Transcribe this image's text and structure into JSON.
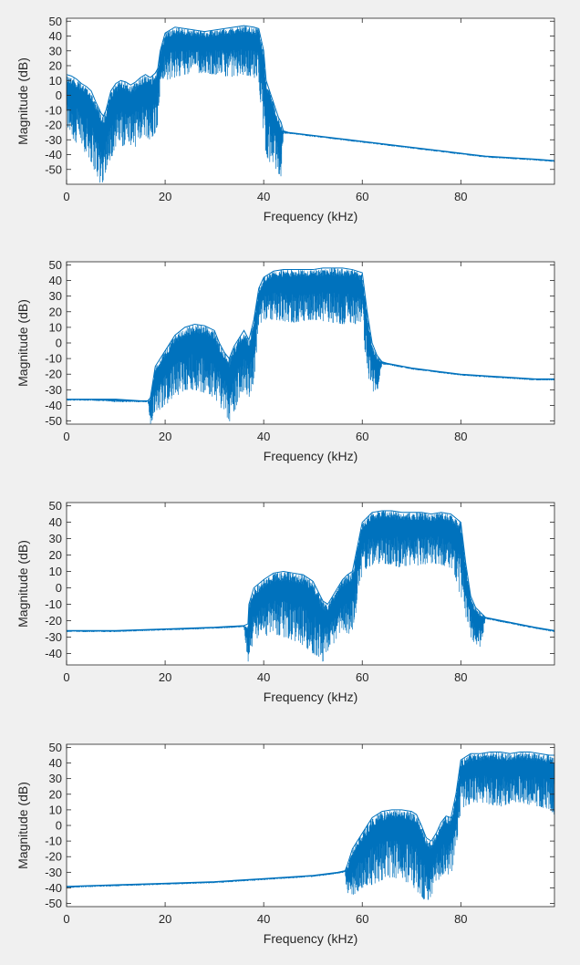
{
  "figure": {
    "background": "#f0f0f0",
    "axes_background": "#ffffff",
    "line_color": "#0072bd"
  },
  "chart_data": [
    {
      "type": "line",
      "title": "",
      "xlabel": "Frequency (kHz)",
      "ylabel": "Magnitude (dB)",
      "xlim": [
        0,
        99
      ],
      "ylim": [
        -60,
        52
      ],
      "xticks": [
        0,
        20,
        40,
        60,
        80
      ],
      "yticks": [
        -50,
        -40,
        -30,
        -20,
        -10,
        0,
        10,
        20,
        30,
        40,
        50
      ],
      "grid": false,
      "series": [
        {
          "x": [
            0,
            1,
            2,
            3,
            4,
            5,
            6,
            7,
            7.5,
            8,
            9,
            10,
            11,
            12,
            13,
            14,
            15,
            16,
            17,
            18,
            18.5,
            19,
            20,
            22,
            24,
            26,
            28,
            30,
            32,
            34,
            36,
            38,
            39,
            40,
            40.5,
            41,
            42,
            43,
            43.5,
            44,
            45,
            50,
            55,
            60,
            65,
            70,
            75,
            80,
            85,
            90,
            95,
            99
          ],
          "y_top": [
            14,
            13,
            11,
            8,
            6,
            3,
            -5,
            -12,
            -14,
            -10,
            3,
            8,
            10,
            9,
            7,
            9,
            12,
            14,
            12,
            15,
            18,
            30,
            42,
            46,
            45,
            44,
            43,
            44,
            45,
            46,
            47,
            46,
            45,
            30,
            10,
            5,
            -5,
            -15,
            -18,
            -24,
            -25,
            -27,
            -29,
            -31,
            -33,
            -35,
            -37,
            -39,
            -41,
            -42,
            -43,
            -44
          ],
          "y_bottom": [
            -25,
            -28,
            -32,
            -35,
            -40,
            -45,
            -55,
            -60,
            -60,
            -50,
            -42,
            -38,
            -35,
            -33,
            -34,
            -35,
            -30,
            -28,
            -30,
            -25,
            -20,
            5,
            10,
            12,
            14,
            15,
            15,
            14,
            13,
            12,
            14,
            12,
            10,
            -30,
            -40,
            -45,
            -45,
            -55,
            -60,
            -26,
            -26,
            -28,
            -30,
            -32,
            -34,
            -36,
            -38,
            -40,
            -42,
            -43,
            -44,
            -45
          ]
        }
      ]
    },
    {
      "type": "line",
      "title": "",
      "xlabel": "Frequency (kHz)",
      "ylabel": "Magnitude (dB)",
      "xlim": [
        0,
        99
      ],
      "ylim": [
        -52,
        52
      ],
      "xticks": [
        0,
        20,
        40,
        60,
        80
      ],
      "yticks": [
        -50,
        -40,
        -30,
        -20,
        -10,
        0,
        10,
        20,
        30,
        40,
        50
      ],
      "grid": false,
      "series": [
        {
          "x": [
            0,
            5,
            10,
            15,
            16.5,
            17,
            18,
            20,
            22,
            24,
            26,
            28,
            30,
            31,
            32,
            33,
            34,
            35,
            36,
            37,
            38,
            39,
            40,
            42,
            44,
            46,
            48,
            50,
            52,
            54,
            56,
            58,
            60,
            61,
            62,
            63,
            64,
            65,
            70,
            75,
            80,
            85,
            90,
            95,
            99
          ],
          "y_top": [
            -36,
            -36,
            -36,
            -37,
            -37,
            -35,
            -15,
            -5,
            5,
            10,
            12,
            11,
            8,
            0,
            -6,
            -10,
            -2,
            3,
            8,
            2,
            15,
            35,
            42,
            46,
            47,
            47,
            47,
            47,
            48,
            48,
            48,
            47,
            45,
            20,
            0,
            -8,
            -12,
            -13,
            -16,
            -18,
            -20,
            -21,
            -22,
            -23,
            -23
          ],
          "y_bottom": [
            -37,
            -37,
            -38,
            -38,
            -38,
            -52,
            -45,
            -40,
            -35,
            -30,
            -30,
            -32,
            -35,
            -40,
            -45,
            -52,
            -45,
            -35,
            -30,
            -35,
            -25,
            10,
            15,
            15,
            14,
            13,
            14,
            15,
            14,
            13,
            12,
            13,
            10,
            -20,
            -30,
            -35,
            -14,
            -14,
            -17,
            -19,
            -21,
            -22,
            -23,
            -24,
            -24
          ]
        }
      ]
    },
    {
      "type": "line",
      "title": "",
      "xlabel": "Frequency (kHz)",
      "ylabel": "Magnitude (dB)",
      "xlim": [
        0,
        99
      ],
      "ylim": [
        -47,
        52
      ],
      "xticks": [
        0,
        20,
        40,
        60,
        80
      ],
      "yticks": [
        -40,
        -30,
        -20,
        -10,
        0,
        10,
        20,
        30,
        40,
        50
      ],
      "grid": false,
      "series": [
        {
          "x": [
            0,
            10,
            20,
            30,
            36,
            36.8,
            37,
            38,
            40,
            42,
            44,
            46,
            48,
            50,
            51,
            52,
            53,
            54,
            55,
            56,
            57,
            58,
            59,
            60,
            62,
            64,
            66,
            68,
            70,
            72,
            74,
            76,
            78,
            80,
            81,
            82,
            83,
            84,
            85,
            90,
            95,
            99
          ],
          "y_top": [
            -26,
            -26,
            -25,
            -24,
            -23,
            -22,
            -10,
            0,
            5,
            9,
            10,
            9,
            8,
            4,
            -2,
            -8,
            -10,
            -5,
            0,
            5,
            8,
            10,
            25,
            40,
            46,
            47,
            47,
            46,
            46,
            46,
            45,
            46,
            45,
            40,
            15,
            -5,
            -12,
            -15,
            -18,
            -21,
            -24,
            -26
          ],
          "y_bottom": [
            -27,
            -27,
            -26,
            -25,
            -24,
            -47,
            -40,
            -35,
            -30,
            -28,
            -30,
            -32,
            -35,
            -40,
            -42,
            -45,
            -40,
            -35,
            -30,
            -25,
            -28,
            -30,
            -10,
            10,
            14,
            15,
            14,
            12,
            13,
            14,
            15,
            14,
            12,
            -5,
            -20,
            -30,
            -35,
            -38,
            -19,
            -22,
            -25,
            -27
          ]
        }
      ]
    },
    {
      "type": "line",
      "title": "",
      "xlabel": "Frequency (kHz)",
      "ylabel": "Magnitude (dB)",
      "xlim": [
        0,
        99
      ],
      "ylim": [
        -52,
        52
      ],
      "xticks": [
        0,
        20,
        40,
        60,
        80
      ],
      "yticks": [
        -50,
        -40,
        -30,
        -20,
        -10,
        0,
        10,
        20,
        30,
        40,
        50
      ],
      "grid": false,
      "series": [
        {
          "x": [
            0,
            10,
            20,
            30,
            40,
            50,
            55,
            56.5,
            57,
            58,
            60,
            62,
            64,
            66,
            68,
            70,
            71,
            72,
            73,
            74,
            75,
            76,
            77,
            78,
            79,
            80,
            82,
            84,
            86,
            88,
            90,
            92,
            94,
            96,
            98,
            99
          ],
          "y_top": [
            -39,
            -38,
            -37,
            -36,
            -34,
            -32,
            -30,
            -29,
            -25,
            -15,
            -5,
            5,
            9,
            10,
            10,
            9,
            7,
            0,
            -8,
            -10,
            -5,
            2,
            6,
            5,
            20,
            42,
            46,
            46,
            47,
            47,
            46,
            47,
            47,
            46,
            45,
            45
          ],
          "y_bottom": [
            -40,
            -39,
            -38,
            -37,
            -35,
            -33,
            -31,
            -30,
            -50,
            -45,
            -40,
            -38,
            -35,
            -33,
            -35,
            -38,
            -42,
            -45,
            -50,
            -45,
            -38,
            -32,
            -30,
            -33,
            -15,
            10,
            14,
            15,
            13,
            12,
            14,
            15,
            13,
            12,
            10,
            5
          ]
        }
      ]
    }
  ]
}
